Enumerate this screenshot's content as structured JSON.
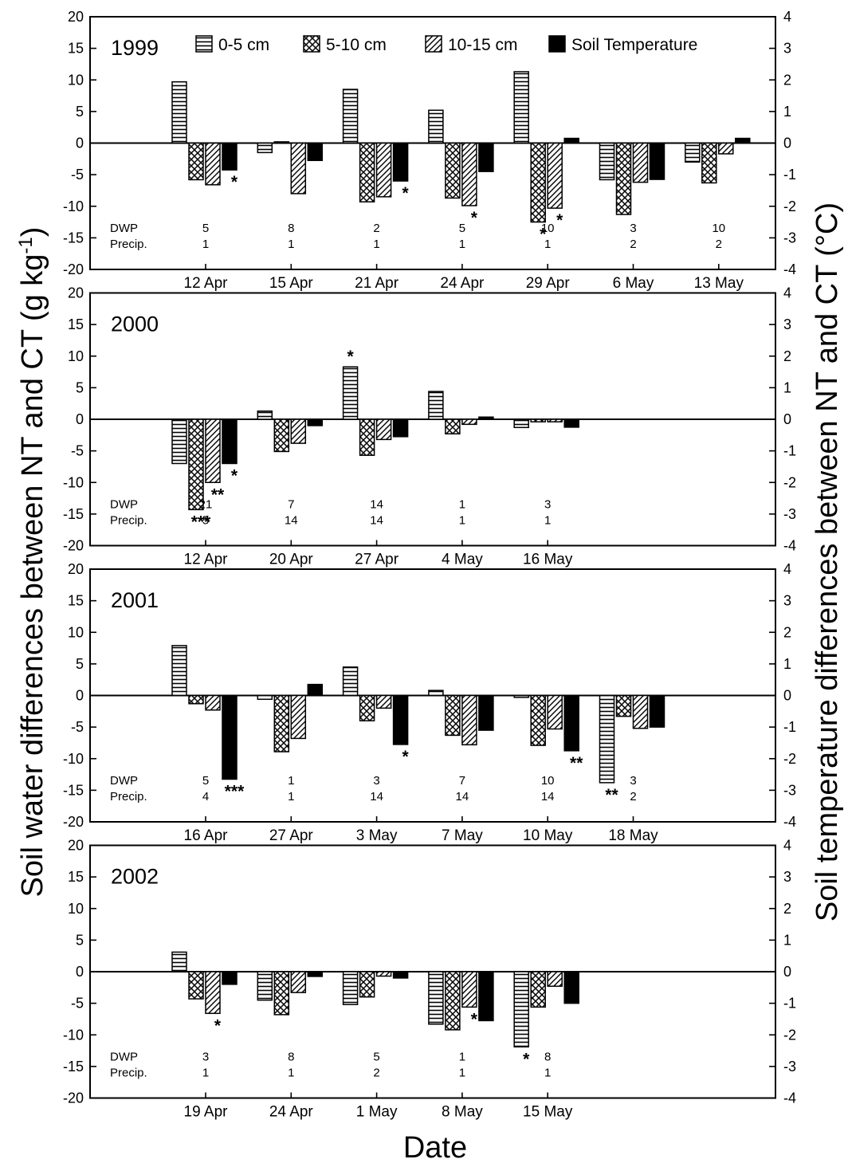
{
  "figure": {
    "ylabel_left_main": "Soil water differences between NT and CT (g kg",
    "ylabel_left_sup": "-1",
    "ylabel_left_end": ")",
    "ylabel_right": "Soil temperature differences between NT and CT (°C)",
    "xlabel": "Date"
  },
  "legend": [
    {
      "label": "0-5 cm",
      "pattern": "horizontal-lines"
    },
    {
      "label": "5-10 cm",
      "pattern": "crosshatch"
    },
    {
      "label": "10-15 cm",
      "pattern": "diagonal-lines"
    },
    {
      "label": "Soil Temperature",
      "pattern": "solid-black"
    }
  ],
  "chart_data": [
    {
      "type": "bar",
      "year": "1999",
      "categories": [
        "12 Apr",
        "15 Apr",
        "21 Apr",
        "24 Apr",
        "29 Apr",
        "6 May",
        "13 May"
      ],
      "ylim": [
        -20,
        20
      ],
      "y2lim": [
        -4,
        4
      ],
      "yticks": [
        -20,
        -15,
        -10,
        -5,
        0,
        5,
        10,
        15,
        20
      ],
      "y2ticks": [
        -4,
        -3,
        -2,
        -1,
        0,
        1,
        2,
        3,
        4
      ],
      "series": [
        {
          "name": "0-5 cm",
          "axis": "left",
          "values": [
            9.7,
            -1.5,
            8.5,
            5.2,
            11.3,
            -5.8,
            -3.0
          ]
        },
        {
          "name": "5-10 cm",
          "axis": "left",
          "values": [
            -5.8,
            0.2,
            -9.3,
            -8.7,
            -12.5,
            -11.3,
            -6.3
          ]
        },
        {
          "name": "10-15 cm",
          "axis": "left",
          "values": [
            -6.6,
            -8.0,
            -8.5,
            -9.9,
            -10.3,
            -6.2,
            -1.7
          ]
        },
        {
          "name": "Soil Temperature",
          "axis": "right",
          "values": [
            -0.85,
            -0.55,
            -1.2,
            -0.9,
            0.15,
            -1.15,
            0.15
          ]
        }
      ],
      "dwp": [
        "5",
        "8",
        "2",
        "5",
        "10",
        "3",
        "10"
      ],
      "precip": [
        "1",
        "1",
        "1",
        "1",
        "1",
        "2",
        "2"
      ],
      "significance": [
        {
          "category": 0,
          "series": 3,
          "label": "*"
        },
        {
          "category": 2,
          "series": 3,
          "label": "*"
        },
        {
          "category": 3,
          "series": 2,
          "label": "*"
        },
        {
          "category": 4,
          "series": 1,
          "label": "*"
        },
        {
          "category": 4,
          "series": 2,
          "label": "*"
        }
      ]
    },
    {
      "type": "bar",
      "year": "2000",
      "categories": [
        "12 Apr",
        "20 Apr",
        "27 Apr",
        "4 May",
        "16 May"
      ],
      "ylim": [
        -20,
        20
      ],
      "y2lim": [
        -4,
        4
      ],
      "yticks": [
        -20,
        -15,
        -10,
        -5,
        0,
        5,
        10,
        15,
        20
      ],
      "y2ticks": [
        -4,
        -3,
        -2,
        -1,
        0,
        1,
        2,
        3,
        4
      ],
      "series": [
        {
          "name": "0-5 cm",
          "axis": "left",
          "values": [
            -7.0,
            1.3,
            8.3,
            4.4,
            -1.3
          ]
        },
        {
          "name": "5-10 cm",
          "axis": "left",
          "values": [
            -14.3,
            -5.1,
            -5.7,
            -2.3,
            -0.4
          ]
        },
        {
          "name": "10-15 cm",
          "axis": "left",
          "values": [
            -10.0,
            -3.8,
            -3.2,
            -0.8,
            -0.4
          ]
        },
        {
          "name": "Soil Temperature",
          "axis": "right",
          "values": [
            -1.4,
            -0.2,
            -0.55,
            0.07,
            -0.25
          ]
        }
      ],
      "dwp": [
        "21",
        "7",
        "14",
        "1",
        "3"
      ],
      "precip": [
        "5",
        "14",
        "14",
        "1",
        "1"
      ],
      "significance": [
        {
          "category": 0,
          "series": 1,
          "label": "***"
        },
        {
          "category": 0,
          "series": 2,
          "label": "**"
        },
        {
          "category": 0,
          "series": 3,
          "label": "*"
        },
        {
          "category": 2,
          "series": 0,
          "label": "*"
        }
      ]
    },
    {
      "type": "bar",
      "year": "2001",
      "categories": [
        "16 Apr",
        "27 Apr",
        "3 May",
        "7 May",
        "10 May",
        "18 May"
      ],
      "ylim": [
        -20,
        20
      ],
      "y2lim": [
        -4,
        4
      ],
      "yticks": [
        -20,
        -15,
        -10,
        -5,
        0,
        5,
        10,
        15,
        20
      ],
      "y2ticks": [
        -4,
        -3,
        -2,
        -1,
        0,
        1,
        2,
        3,
        4
      ],
      "series": [
        {
          "name": "0-5 cm",
          "axis": "left",
          "values": [
            7.9,
            -0.6,
            4.5,
            0.8,
            -0.3,
            -13.8
          ]
        },
        {
          "name": "5-10 cm",
          "axis": "left",
          "values": [
            -1.3,
            -8.9,
            -4.0,
            -6.3,
            -7.9,
            -3.3
          ]
        },
        {
          "name": "10-15 cm",
          "axis": "left",
          "values": [
            -2.3,
            -6.8,
            -2.0,
            -7.8,
            -5.3,
            -5.2
          ]
        },
        {
          "name": "Soil Temperature",
          "axis": "right",
          "values": [
            -2.65,
            0.35,
            -1.55,
            -1.1,
            -1.75,
            -1.0
          ]
        }
      ],
      "dwp": [
        "5",
        "1",
        "3",
        "7",
        "10",
        "3"
      ],
      "precip": [
        "4",
        "1",
        "14",
        "14",
        "14",
        "2"
      ],
      "significance": [
        {
          "category": 0,
          "series": 3,
          "label": "***"
        },
        {
          "category": 2,
          "series": 3,
          "label": "*"
        },
        {
          "category": 4,
          "series": 3,
          "label": "**"
        },
        {
          "category": 5,
          "series": 0,
          "label": "**"
        }
      ]
    },
    {
      "type": "bar",
      "year": "2002",
      "categories": [
        "19 Apr",
        "24 Apr",
        "1 May",
        "8 May",
        "15 May"
      ],
      "ylim": [
        -20,
        20
      ],
      "y2lim": [
        -4,
        4
      ],
      "yticks": [
        -20,
        -15,
        -10,
        -5,
        0,
        5,
        10,
        15,
        20
      ],
      "y2ticks": [
        -4,
        -3,
        -2,
        -1,
        0,
        1,
        2,
        3,
        4
      ],
      "series": [
        {
          "name": "0-5 cm",
          "axis": "left",
          "values": [
            3.1,
            -4.5,
            -5.2,
            -8.3,
            -11.9
          ]
        },
        {
          "name": "5-10 cm",
          "axis": "left",
          "values": [
            -4.3,
            -6.8,
            -4.0,
            -9.2,
            -5.6
          ]
        },
        {
          "name": "10-15 cm",
          "axis": "left",
          "values": [
            -6.6,
            -3.3,
            -0.7,
            -5.6,
            -2.3
          ]
        },
        {
          "name": "Soil Temperature",
          "axis": "right",
          "values": [
            -0.4,
            -0.15,
            -0.2,
            -1.55,
            -1.0
          ]
        }
      ],
      "dwp": [
        "3",
        "8",
        "5",
        "1",
        "8"
      ],
      "precip": [
        "1",
        "1",
        "2",
        "1",
        "1"
      ],
      "significance": [
        {
          "category": 0,
          "series": 2,
          "label": "*"
        },
        {
          "category": 3,
          "series": 2,
          "label": "*"
        },
        {
          "category": 4,
          "series": 0,
          "label": "*"
        }
      ]
    }
  ],
  "row_labels": {
    "dwp": "DWP",
    "precip": "Precip."
  }
}
